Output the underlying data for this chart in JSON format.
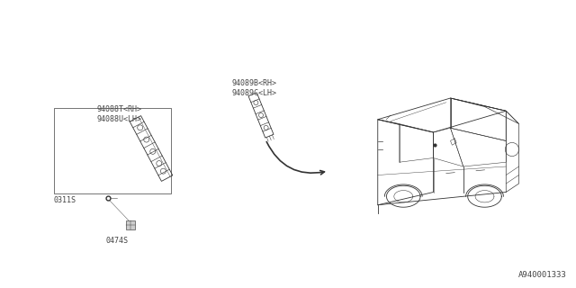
{
  "bg_color": "#ffffff",
  "line_color": "#333333",
  "text_color": "#444444",
  "diagram_number": "A940001333",
  "labels": {
    "part1a": "94088T<RH>",
    "part1b": "94088U<LH>",
    "part2a": "94089B<RH>",
    "part2b": "94089C<LH>",
    "fastener1": "0311S",
    "fastener2": "0474S"
  },
  "font_size": 6.0,
  "diagram_font_size": 6.5
}
